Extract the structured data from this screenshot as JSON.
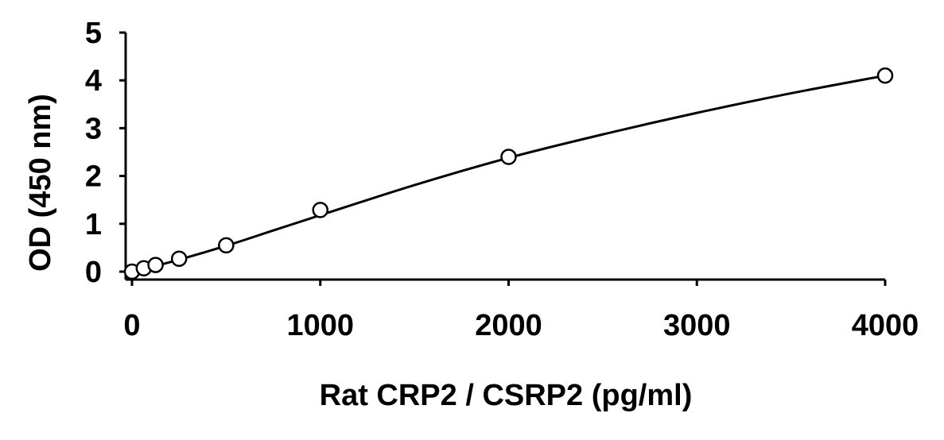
{
  "chart_data": {
    "type": "scatter",
    "title": "",
    "xlabel": "Rat CRP2 / CSRP2  (pg/ml)",
    "ylabel": "OD (450 nm)",
    "xlim": [
      0,
      4000
    ],
    "ylim": [
      0,
      5
    ],
    "xticks": [
      0,
      1000,
      2000,
      3000,
      4000
    ],
    "yticks": [
      0,
      1,
      2,
      3,
      4,
      5
    ],
    "xtick_labels": [
      "0",
      "1000",
      "2000",
      "3000",
      "4000"
    ],
    "ytick_labels": [
      "0",
      "1",
      "2",
      "3",
      "4",
      "5"
    ],
    "grid": false,
    "legend": "none",
    "marker": "open-circle",
    "line_color": "#000000",
    "marker_fill": "#ffffff",
    "series": [
      {
        "x": [
          0,
          62.5,
          125,
          250,
          500,
          1000,
          2000,
          4000
        ],
        "y": [
          0.0,
          0.07,
          0.14,
          0.27,
          0.55,
          1.29,
          2.4,
          4.1
        ]
      }
    ],
    "fit_curve": {
      "type": "smooth fit",
      "x": [
        0,
        125,
        250,
        500,
        750,
        1000,
        1500,
        2000,
        2500,
        3000,
        3500,
        4000
      ],
      "y": [
        0.0,
        0.12,
        0.25,
        0.54,
        0.86,
        1.18,
        1.81,
        2.38,
        2.87,
        3.32,
        3.73,
        4.1
      ]
    }
  }
}
